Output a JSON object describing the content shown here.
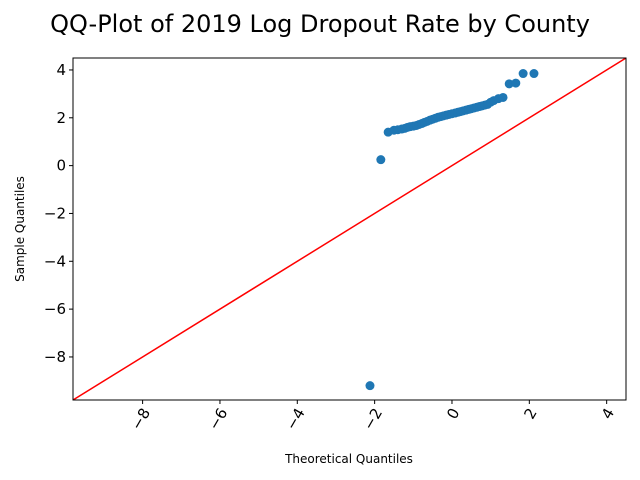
{
  "chart_data": {
    "type": "scatter",
    "title": "QQ-Plot of 2019 Log Dropout Rate by County",
    "xlabel": "Theoretical Quantiles",
    "ylabel": "Sample Quantiles",
    "xlim": [
      -9.8,
      4.5
    ],
    "ylim": [
      -9.8,
      4.5
    ],
    "x_ticks": [
      -8,
      -6,
      -4,
      -2,
      0,
      2,
      4
    ],
    "x_tick_labels": [
      "−8",
      "−6",
      "−4",
      "−2",
      "0",
      "2",
      "4"
    ],
    "y_ticks": [
      4,
      2,
      0,
      -2,
      -4,
      -6,
      -8
    ],
    "y_tick_labels": [
      "4",
      "2",
      "0",
      "−2",
      "−4",
      "−6",
      "−8"
    ],
    "grid": false,
    "point_color": "#1f77b4",
    "line_color": "#ff0000",
    "reference_line": {
      "slope": 1,
      "intercept": 0
    },
    "points": [
      {
        "x": -2.12,
        "y": -9.2
      },
      {
        "x": -1.84,
        "y": 0.25
      },
      {
        "x": -1.65,
        "y": 1.4
      },
      {
        "x": -1.5,
        "y": 1.48
      },
      {
        "x": -1.4,
        "y": 1.5
      },
      {
        "x": -1.3,
        "y": 1.53
      },
      {
        "x": -1.22,
        "y": 1.56
      },
      {
        "x": -1.15,
        "y": 1.6
      },
      {
        "x": -1.08,
        "y": 1.63
      },
      {
        "x": -1.0,
        "y": 1.65
      },
      {
        "x": -0.92,
        "y": 1.68
      },
      {
        "x": -0.85,
        "y": 1.72
      },
      {
        "x": -0.78,
        "y": 1.76
      },
      {
        "x": -0.71,
        "y": 1.81
      },
      {
        "x": -0.64,
        "y": 1.85
      },
      {
        "x": -0.57,
        "y": 1.9
      },
      {
        "x": -0.5,
        "y": 1.94
      },
      {
        "x": -0.43,
        "y": 1.98
      },
      {
        "x": -0.36,
        "y": 2.02
      },
      {
        "x": -0.29,
        "y": 2.05
      },
      {
        "x": -0.22,
        "y": 2.08
      },
      {
        "x": -0.15,
        "y": 2.11
      },
      {
        "x": -0.08,
        "y": 2.14
      },
      {
        "x": 0.0,
        "y": 2.17
      },
      {
        "x": 0.08,
        "y": 2.2
      },
      {
        "x": 0.15,
        "y": 2.23
      },
      {
        "x": 0.22,
        "y": 2.26
      },
      {
        "x": 0.29,
        "y": 2.29
      },
      {
        "x": 0.36,
        "y": 2.32
      },
      {
        "x": 0.43,
        "y": 2.35
      },
      {
        "x": 0.5,
        "y": 2.38
      },
      {
        "x": 0.57,
        "y": 2.41
      },
      {
        "x": 0.64,
        "y": 2.44
      },
      {
        "x": 0.71,
        "y": 2.47
      },
      {
        "x": 0.78,
        "y": 2.5
      },
      {
        "x": 0.85,
        "y": 2.53
      },
      {
        "x": 0.92,
        "y": 2.56
      },
      {
        "x": 1.0,
        "y": 2.65
      },
      {
        "x": 1.08,
        "y": 2.72
      },
      {
        "x": 1.2,
        "y": 2.8
      },
      {
        "x": 1.32,
        "y": 2.85
      },
      {
        "x": 1.48,
        "y": 3.42
      },
      {
        "x": 1.65,
        "y": 3.45
      },
      {
        "x": 1.84,
        "y": 3.85
      },
      {
        "x": 2.12,
        "y": 3.85
      }
    ]
  }
}
